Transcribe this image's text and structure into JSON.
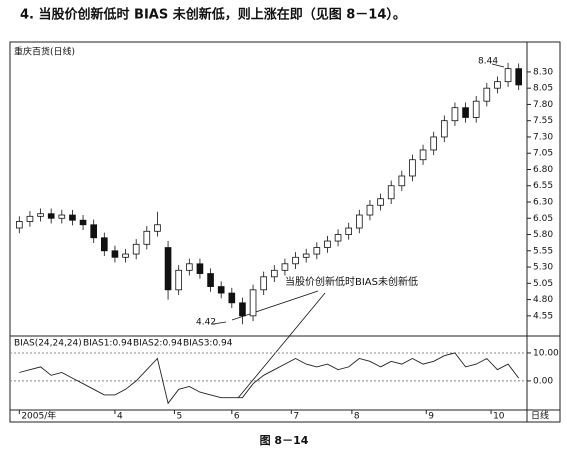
{
  "heading": "4. 当股价创新低时 BIAS 未创新低，则上涨在即（见图 8－14）。",
  "caption": "图 8－14",
  "chart_data": [
    {
      "type": "candlestick",
      "title": "重庆百货(日线)",
      "period_label": "日线",
      "series": [
        {
          "name": "重庆百货",
          "open": [
            5.9,
            6.0,
            6.08,
            6.12,
            6.05,
            6.1,
            6.02,
            5.95,
            5.75,
            5.55,
            5.45,
            5.5,
            5.65,
            5.85,
            5.6,
            4.95,
            5.25,
            5.35,
            5.2,
            5.0,
            4.9,
            4.75,
            4.55,
            4.95,
            5.15,
            5.25,
            5.35,
            5.45,
            5.5,
            5.6,
            5.7,
            5.8,
            5.9,
            6.1,
            6.25,
            6.35,
            6.55,
            6.7,
            6.95,
            7.1,
            7.3,
            7.55,
            7.75,
            7.6,
            7.85,
            8.05,
            8.15,
            8.35
          ],
          "high": [
            6.08,
            6.16,
            6.2,
            6.2,
            6.18,
            6.18,
            6.1,
            6.03,
            5.83,
            5.63,
            5.58,
            5.73,
            5.93,
            6.15,
            5.7,
            5.33,
            5.43,
            5.43,
            5.28,
            5.08,
            4.98,
            4.83,
            5.03,
            5.23,
            5.33,
            5.43,
            5.53,
            5.58,
            5.68,
            5.78,
            5.88,
            5.98,
            6.18,
            6.33,
            6.43,
            6.63,
            6.78,
            7.03,
            7.18,
            7.38,
            7.63,
            7.83,
            7.83,
            7.93,
            8.13,
            8.23,
            8.44,
            8.43
          ],
          "low": [
            5.82,
            5.92,
            6.0,
            5.97,
            5.97,
            5.94,
            5.87,
            5.67,
            5.47,
            5.37,
            5.37,
            5.42,
            5.57,
            5.77,
            4.8,
            4.87,
            5.17,
            5.12,
            4.92,
            4.82,
            4.67,
            4.42,
            4.47,
            4.87,
            5.07,
            5.17,
            5.27,
            5.37,
            5.42,
            5.52,
            5.62,
            5.72,
            5.82,
            6.02,
            6.17,
            6.27,
            6.47,
            6.62,
            6.87,
            7.02,
            7.22,
            7.47,
            7.52,
            7.52,
            7.77,
            7.97,
            8.07,
            8.02
          ],
          "close": [
            6.0,
            6.08,
            6.12,
            6.05,
            6.1,
            6.02,
            5.95,
            5.75,
            5.55,
            5.45,
            5.5,
            5.65,
            5.85,
            5.95,
            4.95,
            5.25,
            5.35,
            5.2,
            5.0,
            4.9,
            4.75,
            4.55,
            4.95,
            5.15,
            5.25,
            5.35,
            5.45,
            5.5,
            5.6,
            5.7,
            5.8,
            5.9,
            6.1,
            6.25,
            6.35,
            6.55,
            6.7,
            6.95,
            7.1,
            7.3,
            7.55,
            7.75,
            7.6,
            7.85,
            8.05,
            8.15,
            8.35,
            8.1
          ]
        }
      ],
      "xlim": [
        -0.5,
        47.5
      ],
      "xticks": [
        {
          "value": 0,
          "label": "2005/年"
        },
        {
          "value": 9,
          "label": "4"
        },
        {
          "value": 14.6,
          "label": "5"
        },
        {
          "value": 20,
          "label": "6"
        },
        {
          "value": 25.6,
          "label": "7"
        },
        {
          "value": 31.3,
          "label": "8"
        },
        {
          "value": 38.3,
          "label": "9"
        },
        {
          "value": 44.4,
          "label": "10"
        }
      ],
      "ylim": [
        4.24,
        8.76
      ],
      "yticks": [
        4.55,
        {
          "value": 4.8,
          "label": "4.80"
        },
        5.05,
        {
          "value": 5.3,
          "label": "5.30"
        },
        5.55,
        {
          "value": 5.8,
          "label": "5.80"
        },
        6.05,
        {
          "value": 6.3,
          "label": "6.30"
        },
        6.55,
        {
          "value": 6.8,
          "label": "6.80"
        },
        7.05,
        {
          "value": 7.3,
          "label": "7.30"
        },
        7.55,
        {
          "value": 7.8,
          "label": "7.80"
        },
        8.05,
        {
          "value": 8.3,
          "label": "8.30"
        }
      ],
      "annotations": [
        "8.44",
        "4.42",
        "当股价创新低时BIAS未创新低"
      ]
    },
    {
      "type": "line",
      "title": "BIAS(24,24,24)",
      "series": [
        {
          "name": "BIAS1:0.94",
          "color": "#222222",
          "values": [
            3,
            4,
            5,
            2,
            3,
            1,
            -1,
            -3,
            -5,
            -5,
            -3,
            0,
            4,
            8,
            -8,
            -3,
            -2,
            -4,
            -5,
            -6,
            -6,
            -6,
            -1,
            2,
            4,
            6,
            8,
            6,
            5,
            6,
            4,
            5,
            8,
            7,
            5,
            7,
            6,
            8,
            6,
            7,
            9,
            10,
            5,
            6,
            8,
            4,
            6,
            1
          ]
        }
      ],
      "legend_extra": [
        "BIAS2:0.94",
        "BIAS3:0.94"
      ],
      "ylim": [
        -10.4,
        15.7
      ],
      "yticks": [
        {
          "value": 10,
          "label": "10.00"
        },
        {
          "value": 0,
          "label": "0.00"
        }
      ]
    }
  ]
}
